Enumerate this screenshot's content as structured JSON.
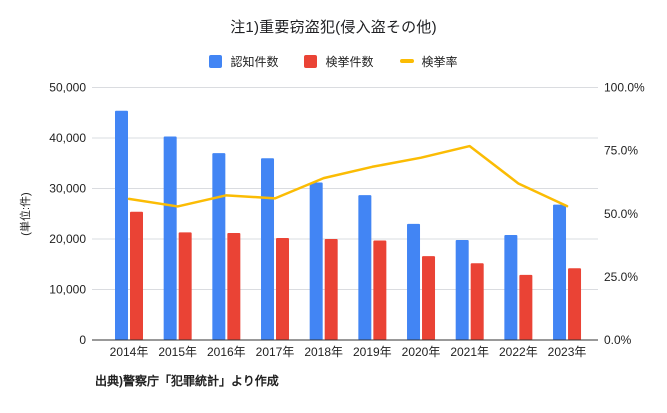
{
  "chart": {
    "title": "注1)重要窃盗犯(侵入盗その他)",
    "source": "出典)警察庁「犯罪統計」より作成",
    "legend": [
      {
        "label": "認知件数",
        "color": "#4285F4",
        "marker": "square"
      },
      {
        "label": "検挙件数",
        "color": "#EA4335",
        "marker": "square"
      },
      {
        "label": "検挙率",
        "color": "#FBBC04",
        "marker": "line"
      }
    ],
    "left_axis": {
      "unit_label": "(単位:件)",
      "ticks": [
        "50,000",
        "40,000",
        "30,000",
        "20,000",
        "10,000",
        "0"
      ]
    },
    "right_axis": {
      "ticks": [
        "100.0%",
        "75.0%",
        "50.0%",
        "25.0%",
        "0.0%"
      ]
    }
  },
  "chart_data": {
    "type": "bar+line",
    "categories": [
      "2014年",
      "2015年",
      "2016年",
      "2017年",
      "2018年",
      "2019年",
      "2020年",
      "2021年",
      "2022年",
      "2023年"
    ],
    "series": [
      {
        "name": "認知件数",
        "type": "bar",
        "axis": "left",
        "color": "#4285F4",
        "values": [
          45400,
          40300,
          37000,
          36000,
          31200,
          28700,
          23000,
          19800,
          20800,
          26800
        ]
      },
      {
        "name": "検挙件数",
        "type": "bar",
        "axis": "left",
        "color": "#EA4335",
        "values": [
          25400,
          21300,
          21200,
          20200,
          20000,
          19700,
          16600,
          15200,
          12900,
          14200
        ]
      },
      {
        "name": "検挙率",
        "type": "line",
        "axis": "right",
        "color": "#FBBC04",
        "values": [
          55.9,
          52.9,
          57.3,
          56.1,
          64.1,
          68.6,
          72.2,
          76.8,
          62.0,
          53.0
        ]
      }
    ],
    "title": "注1)重要窃盗犯(侵入盗その他)",
    "left_ylabel": "(単位:件)",
    "left_ylim": [
      0,
      50000
    ],
    "right_ylim": [
      0,
      100
    ],
    "grid": true,
    "legend_position": "top"
  },
  "colors": {
    "grid": "#dadce0",
    "axis": "#333333",
    "text": "#222222",
    "background": "#ffffff"
  }
}
